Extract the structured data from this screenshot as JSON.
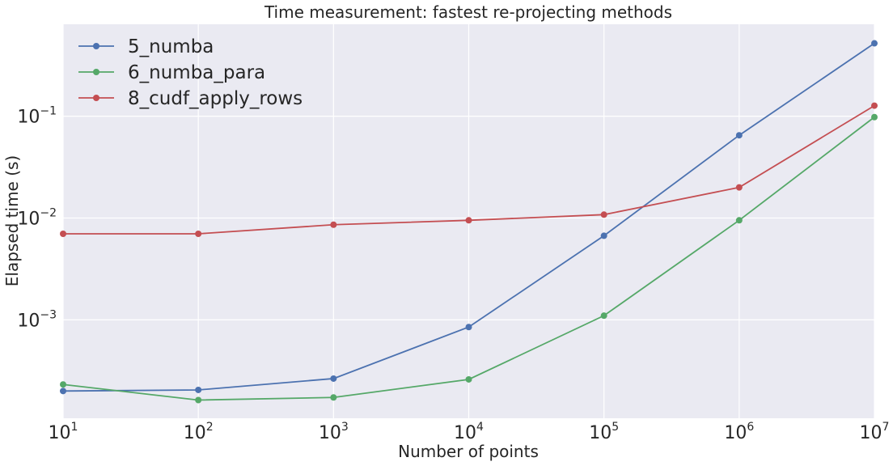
{
  "chart_data": {
    "type": "line",
    "title": "Time measurement: fastest re-projecting methods",
    "xlabel": "Number of points",
    "ylabel": "Elapsed time (s)",
    "xscale": "log",
    "yscale": "log",
    "xlim": [
      10,
      10000000
    ],
    "ylim": [
      0.000108,
      0.8
    ],
    "x": [
      10,
      100,
      1000,
      10000,
      100000,
      1000000,
      10000000
    ],
    "xticks": [
      {
        "value": 10,
        "base": "10",
        "exp": "1"
      },
      {
        "value": 100,
        "base": "10",
        "exp": "2"
      },
      {
        "value": 1000,
        "base": "10",
        "exp": "3"
      },
      {
        "value": 10000,
        "base": "10",
        "exp": "4"
      },
      {
        "value": 100000,
        "base": "10",
        "exp": "5"
      },
      {
        "value": 1000000,
        "base": "10",
        "exp": "6"
      },
      {
        "value": 10000000,
        "base": "10",
        "exp": "7"
      }
    ],
    "yticks": [
      {
        "value": 0.001,
        "base": "10",
        "exp": "−3"
      },
      {
        "value": 0.01,
        "base": "10",
        "exp": "−2"
      },
      {
        "value": 0.1,
        "base": "10",
        "exp": "−1"
      }
    ],
    "grid": true,
    "legend_position": "top-left",
    "series": [
      {
        "name": "5_numba",
        "color": "#4c72b0",
        "values": [
          0.0002,
          0.000205,
          0.000265,
          0.00085,
          0.0067,
          0.065,
          0.52
        ]
      },
      {
        "name": "6_numba_para",
        "color": "#55a868",
        "values": [
          0.000232,
          0.000163,
          0.000173,
          0.00026,
          0.0011,
          0.0095,
          0.098
        ]
      },
      {
        "name": "8_cudf_apply_rows",
        "color": "#c44e52",
        "values": [
          0.007,
          0.007,
          0.0086,
          0.0095,
          0.0108,
          0.02,
          0.127
        ]
      }
    ]
  }
}
